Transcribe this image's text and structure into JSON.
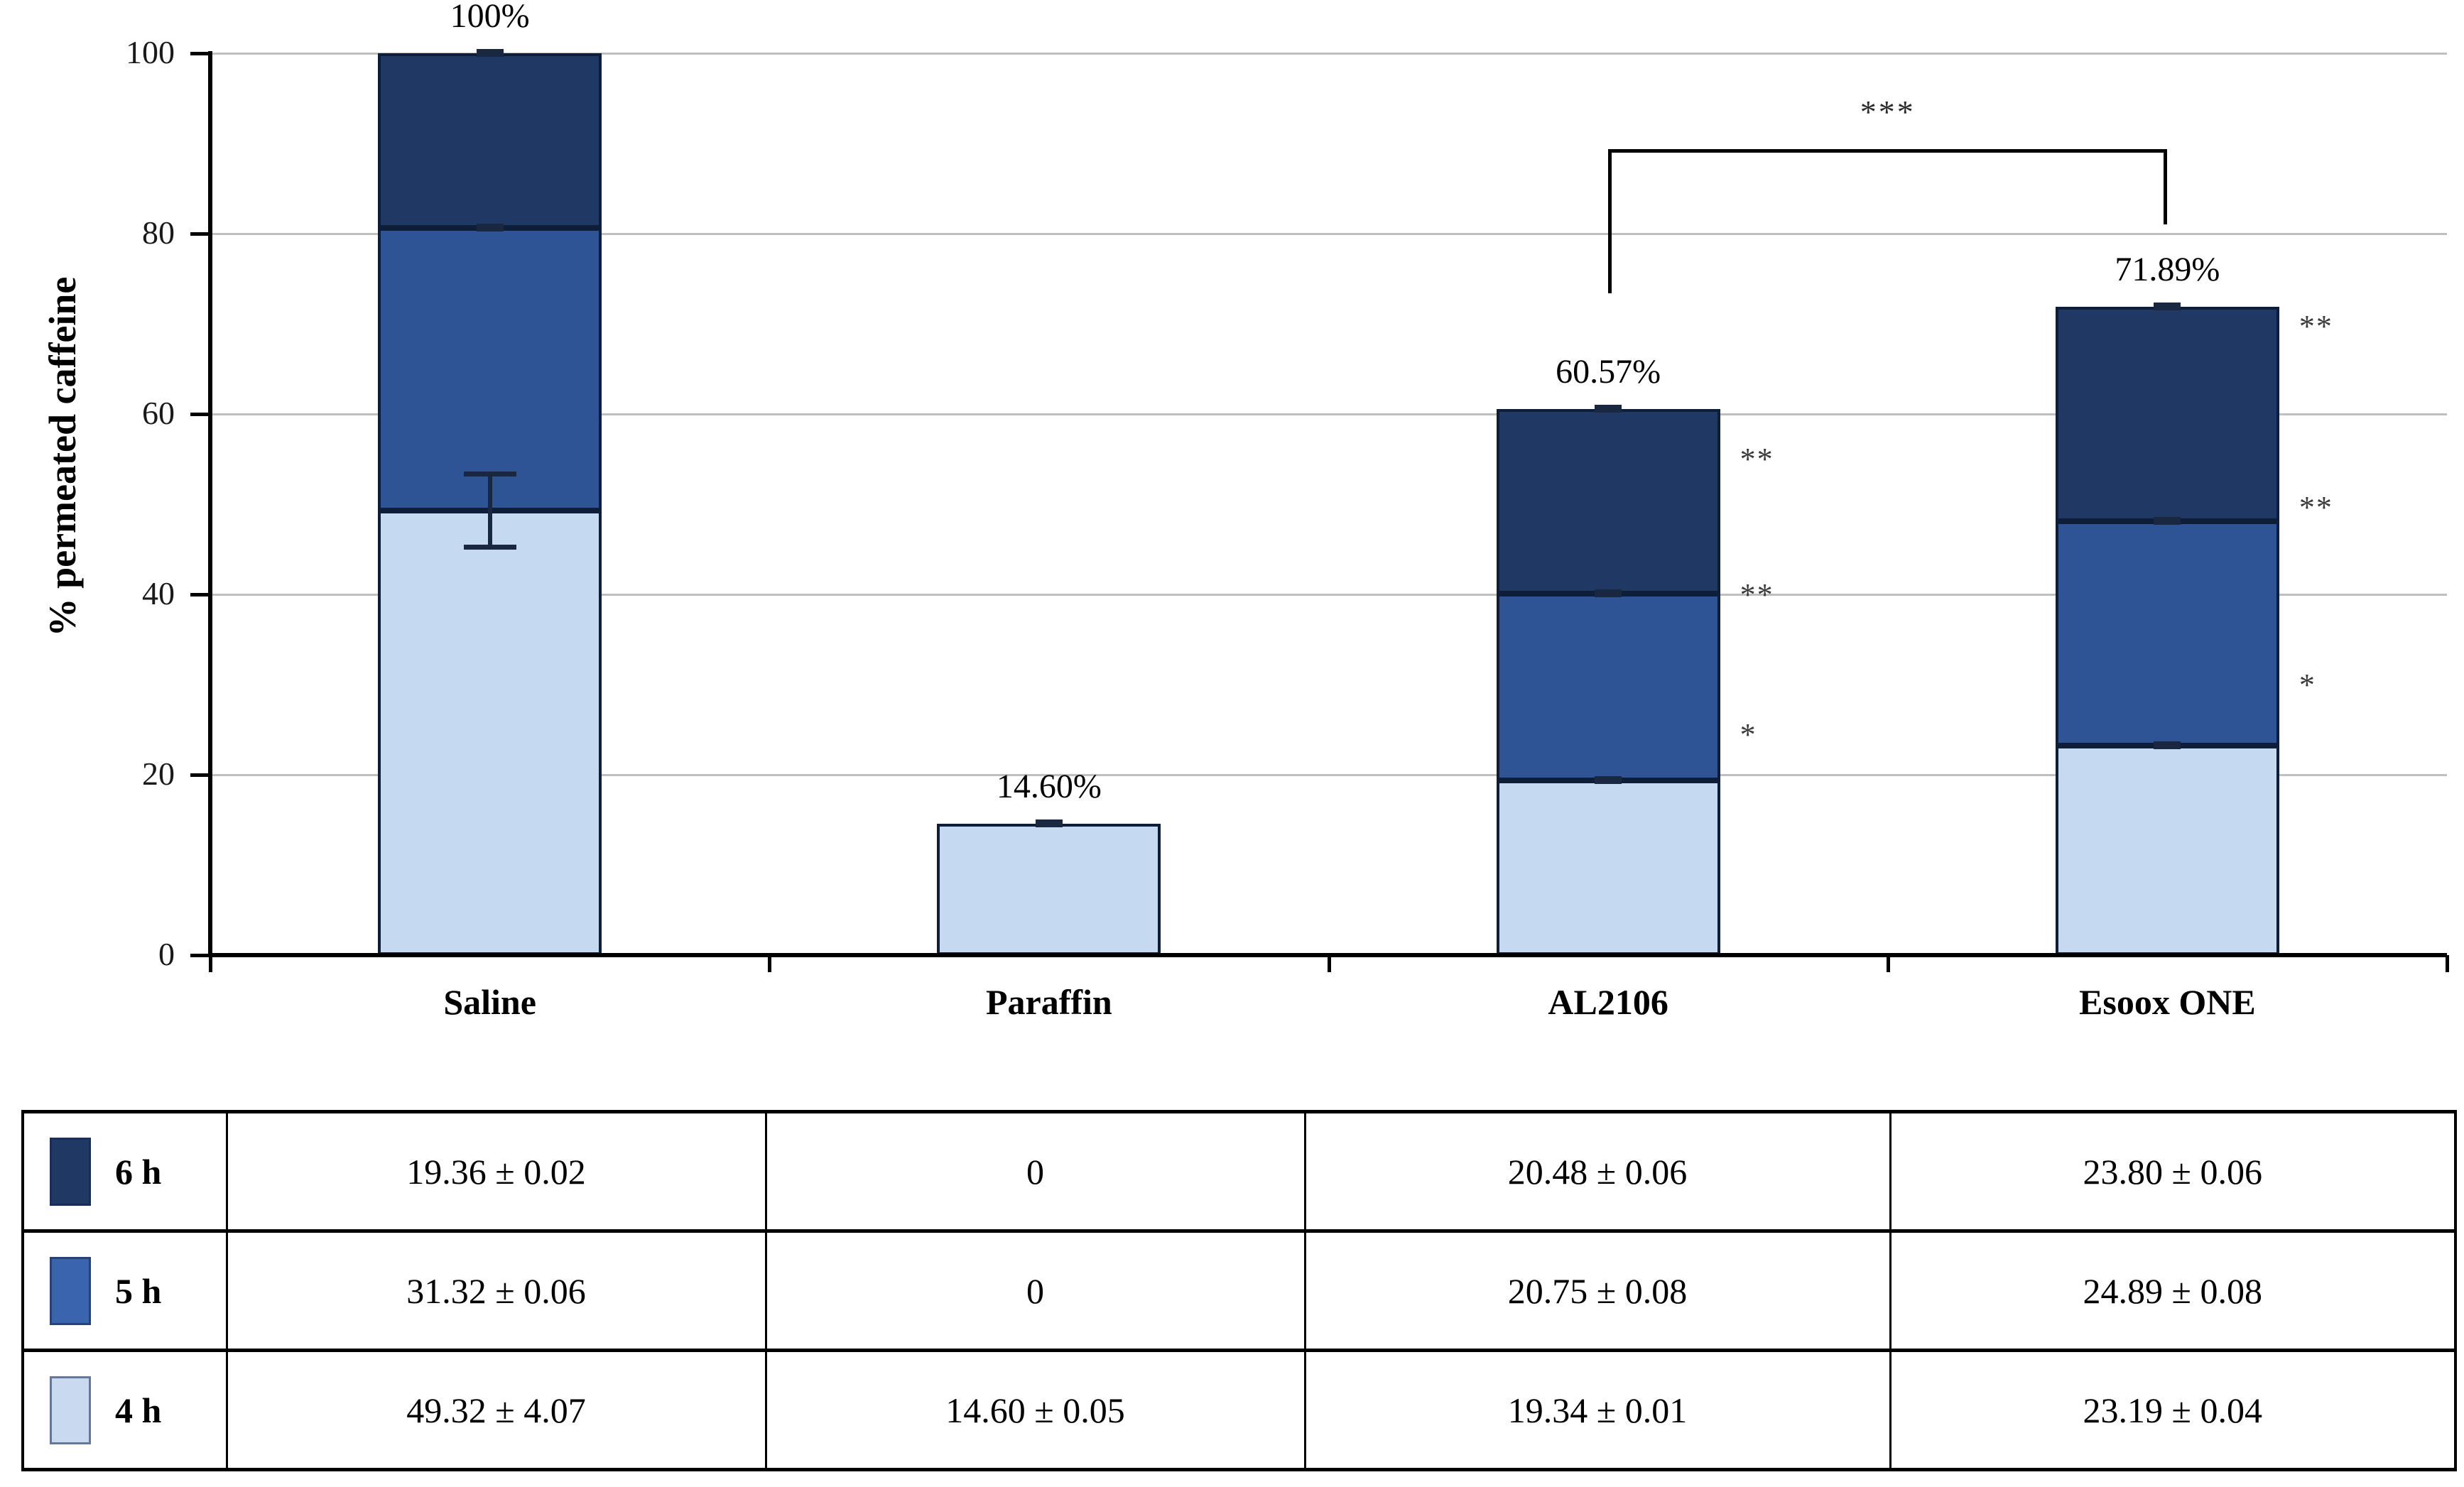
{
  "chart_data": {
    "type": "bar",
    "stacked": true,
    "title": "",
    "xlabel": "",
    "ylabel": "% permeated caffeine",
    "ylim": [
      0,
      100
    ],
    "yticks": [
      0,
      20,
      40,
      60,
      80,
      100
    ],
    "grid": "horizontal",
    "legend_position": "table-below-left-column",
    "categories": [
      "Saline",
      "Paraffin",
      "AL2106",
      "Esoox ONE"
    ],
    "series": [
      {
        "name": "4 h",
        "color": "#c5d9f0",
        "values": [
          49.32,
          14.6,
          19.34,
          23.19
        ],
        "errors": [
          4.07,
          0.05,
          0.01,
          0.04
        ]
      },
      {
        "name": "5 h",
        "color": "#2e5496",
        "values": [
          31.32,
          0,
          20.75,
          24.89
        ],
        "errors": [
          0.06,
          0,
          0.08,
          0.08
        ]
      },
      {
        "name": "6 h",
        "color": "#1f3864",
        "values": [
          19.36,
          0,
          20.48,
          23.8
        ],
        "errors": [
          0.02,
          0,
          0.06,
          0.06
        ]
      }
    ],
    "total_labels": [
      "100%",
      "14.60%",
      "60.57%",
      "71.89%"
    ],
    "bar_annotations": [
      {
        "category_index": 2,
        "marks": [
          {
            "text": "**",
            "at": 55.0
          },
          {
            "text": "**",
            "at": 39.9
          },
          {
            "text": "*",
            "at": 24.4
          }
        ]
      },
      {
        "category_index": 3,
        "marks": [
          {
            "text": "**",
            "at": 69.7
          },
          {
            "text": "**",
            "at": 49.6
          },
          {
            "text": "*",
            "at": 29.9
          }
        ]
      }
    ],
    "significance_bracket": {
      "text": "***",
      "from_category_index": 2,
      "to_category_index": 3,
      "bar_y": 89.4,
      "left_drop_to": 73.4,
      "right_drop_to": 81.0
    }
  },
  "table": {
    "rows": [
      {
        "label": "6 h",
        "swatch_color": "#1f3864",
        "values": [
          "19.36 ± 0.02",
          "0",
          "20.48 ± 0.06",
          "23.80 ± 0.06"
        ]
      },
      {
        "label": "5 h",
        "swatch_color": "#3a64ad",
        "values": [
          "31.32 ± 0.06",
          "0",
          "20.75 ± 0.08",
          "24.89 ± 0.08"
        ]
      },
      {
        "label": "4 h",
        "swatch_color": "#c9daf0",
        "values": [
          "49.32 ± 4.07",
          "14.60 ± 0.05",
          "19.34 ± 0.01",
          "23.19 ± 0.04"
        ]
      }
    ]
  },
  "colors": {
    "gridline": "#bfbfbf",
    "axis": "#000000",
    "bar_border": "#0e1d38",
    "error_bar": "#1a2740",
    "tick_label": "#1a1a1a"
  }
}
